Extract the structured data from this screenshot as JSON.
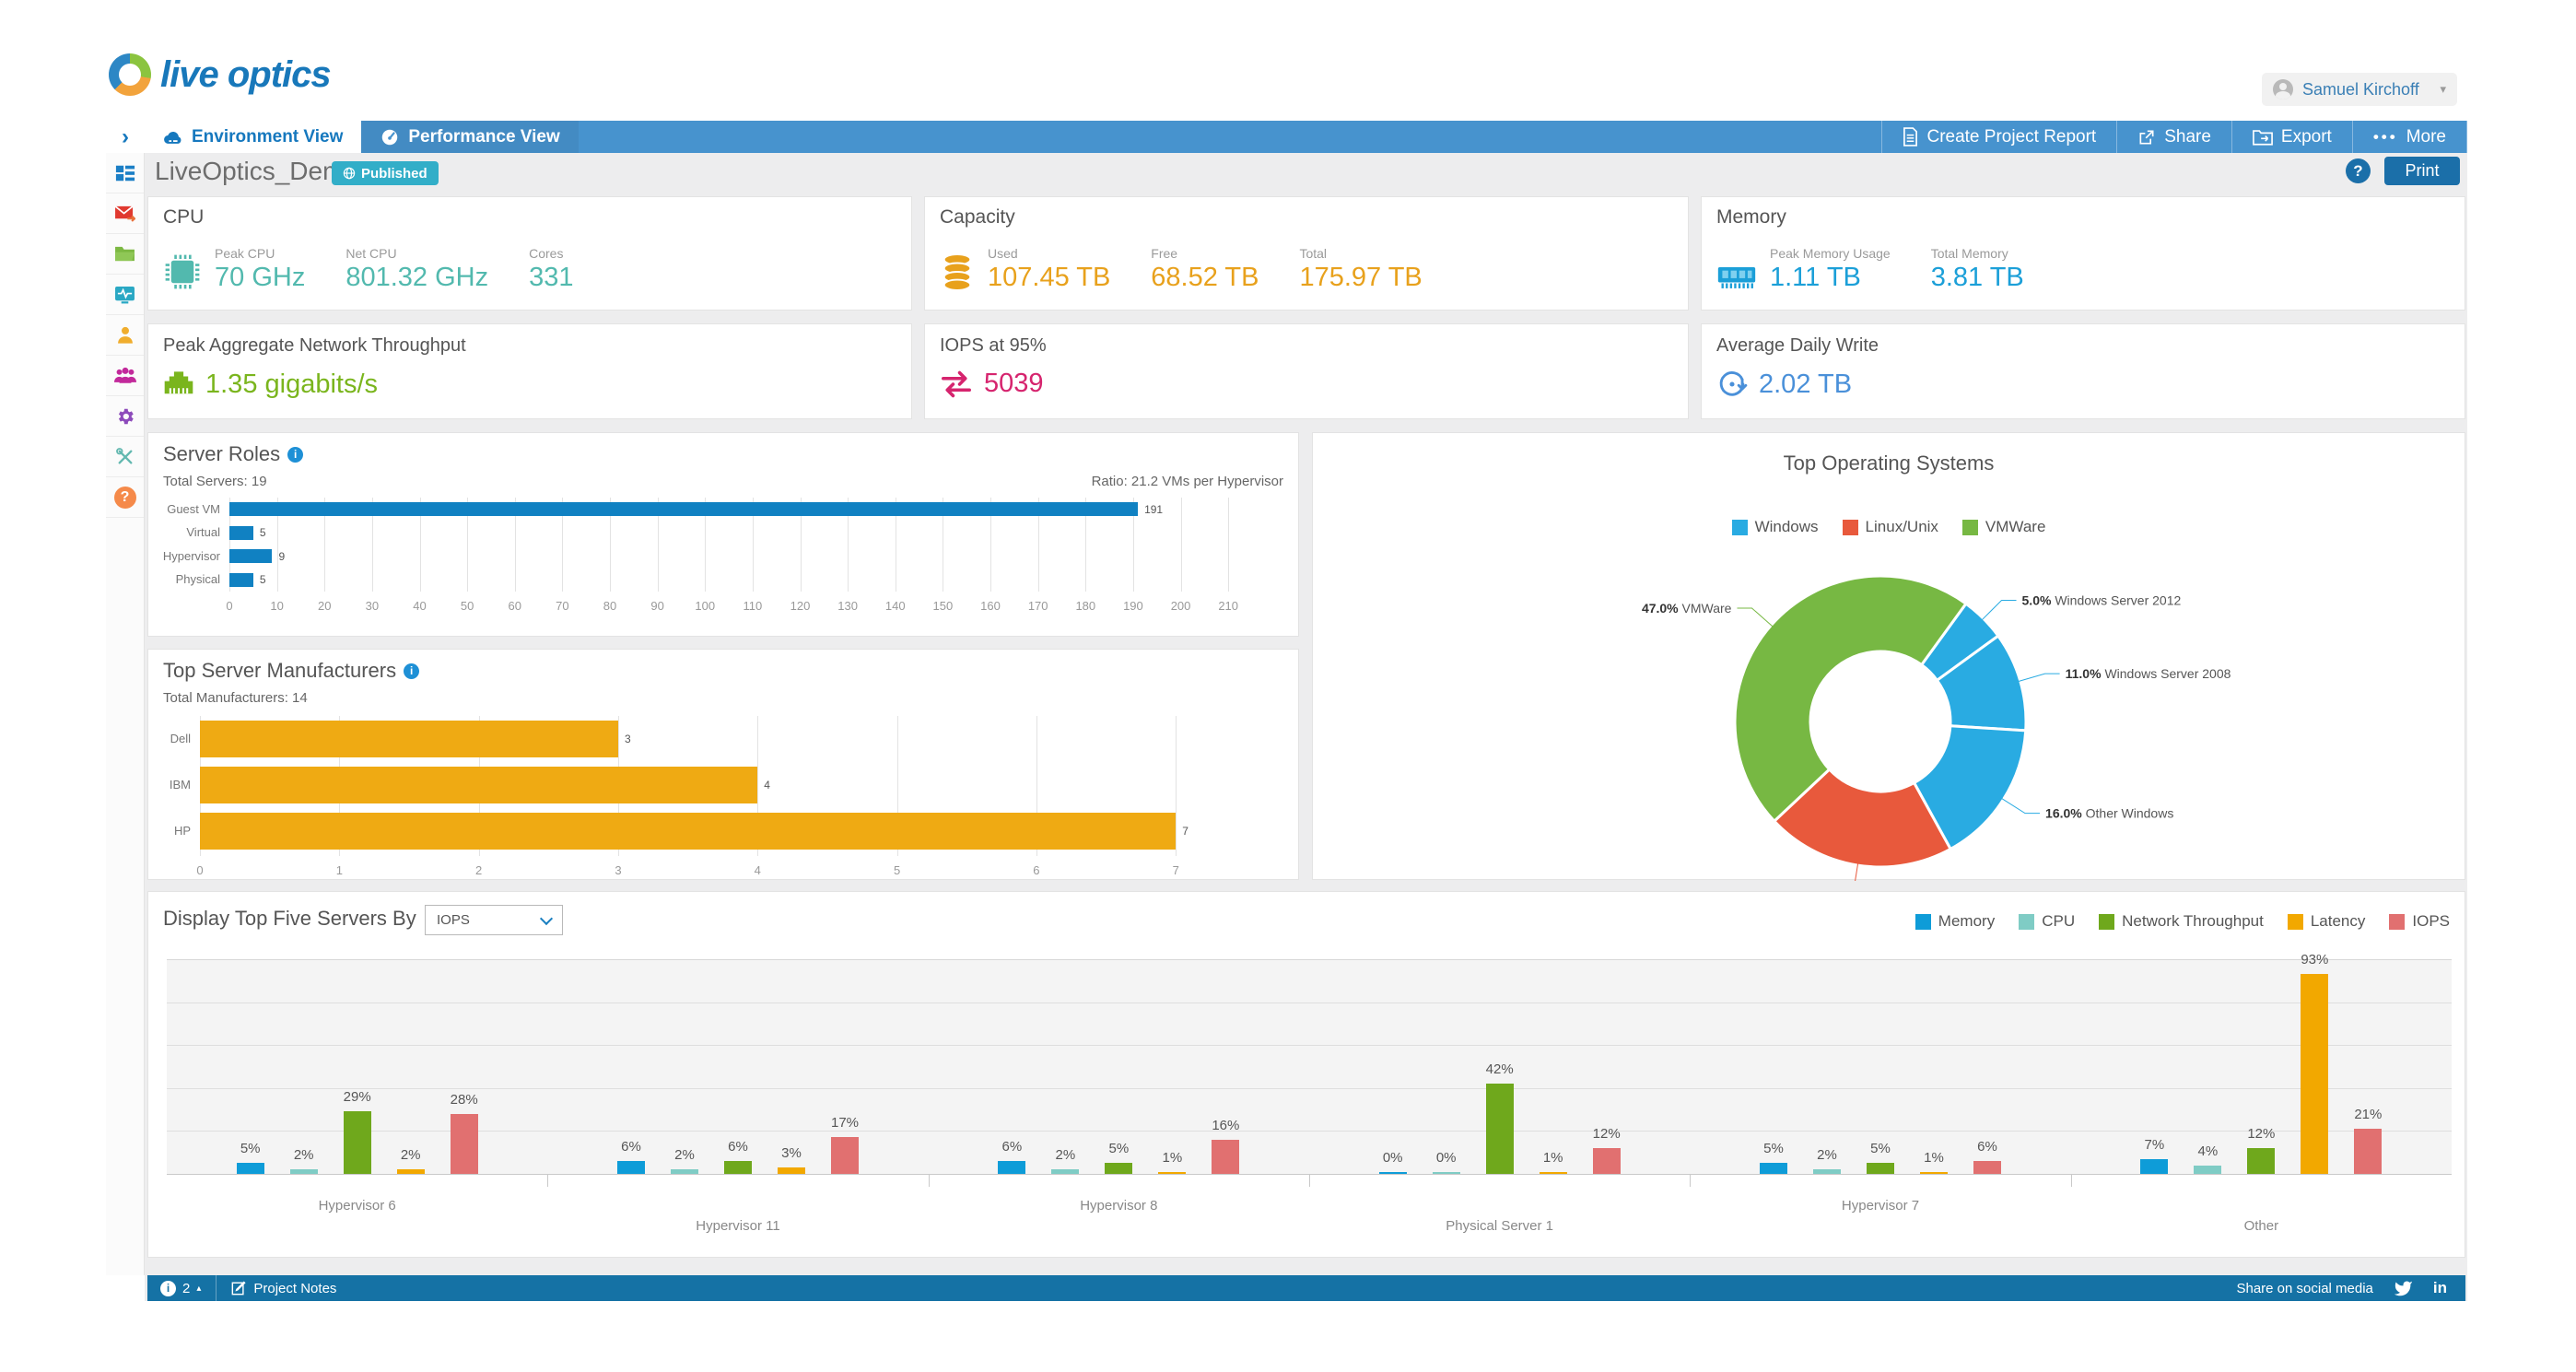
{
  "header": {
    "logo_text": "live optics",
    "user_name": "Samuel Kirchoff"
  },
  "nav": {
    "tabs": [
      {
        "label": "Environment View"
      },
      {
        "label": "Performance View"
      }
    ],
    "actions": [
      {
        "label": "Create Project Report"
      },
      {
        "label": "Share"
      },
      {
        "label": "Export"
      },
      {
        "label": "More"
      }
    ]
  },
  "title_bar": {
    "project_name": "LiveOptics_Demo1",
    "badge": "Published",
    "help": "?",
    "print_label": "Print"
  },
  "stat_cards": {
    "cpu": {
      "title": "CPU",
      "accent": "#52b9ae",
      "stats": [
        {
          "label": "Peak CPU",
          "value": "70 GHz"
        },
        {
          "label": "Net CPU",
          "value": "801.32 GHz"
        },
        {
          "label": "Cores",
          "value": "331"
        }
      ]
    },
    "capacity": {
      "title": "Capacity",
      "accent": "#e8a11c",
      "stats": [
        {
          "label": "Used",
          "value": "107.45 TB"
        },
        {
          "label": "Free",
          "value": "68.52 TB"
        },
        {
          "label": "Total",
          "value": "175.97 TB"
        }
      ]
    },
    "memory": {
      "title": "Memory",
      "accent": "#1b9fd8",
      "stats": [
        {
          "label": "Peak Memory Usage",
          "value": "1.11 TB"
        },
        {
          "label": "Total Memory",
          "value": "3.81 TB"
        }
      ]
    },
    "network": {
      "title": "Peak Aggregate Network Throughput",
      "accent": "#7ab51d",
      "value": "1.35 gigabits/s"
    },
    "iops": {
      "title": "IOPS at 95%",
      "accent": "#d6246e",
      "value": "5039"
    },
    "daily_write": {
      "title": "Average Daily Write",
      "accent": "#4a90d9",
      "value": "2.02 TB"
    }
  },
  "chart_data": [
    {
      "id": "server_roles",
      "type": "bar",
      "orientation": "horizontal",
      "title": "Server Roles",
      "subtitle_left": "Total Servers: 19",
      "subtitle_right": "Ratio: 21.2 VMs per Hypervisor",
      "categories": [
        "Guest VM",
        "Virtual",
        "Hypervisor",
        "Physical"
      ],
      "values": [
        191,
        5,
        9,
        5
      ],
      "bar_color": "#1081c2",
      "xlim": [
        0,
        215
      ],
      "grid": true,
      "ticks": [
        0,
        10,
        20,
        30,
        40,
        50,
        60,
        70,
        80,
        90,
        100,
        110,
        120,
        130,
        140,
        150,
        160,
        170,
        180,
        190,
        200,
        210
      ]
    },
    {
      "id": "top_manufacturers",
      "type": "bar",
      "orientation": "horizontal",
      "title": "Top Server Manufacturers",
      "subtitle_left": "Total Manufacturers: 14",
      "categories": [
        "Dell",
        "IBM",
        "HP"
      ],
      "values": [
        3,
        4,
        7
      ],
      "bar_color": "#efaa13",
      "xlim": [
        0,
        7.6
      ],
      "grid": true,
      "ticks": [
        0,
        1,
        2,
        3,
        4,
        5,
        6,
        7
      ]
    },
    {
      "id": "top_os",
      "type": "pie",
      "title": "Top Operating Systems",
      "legend_position": "top",
      "legend": [
        {
          "label": "Windows",
          "color": "#29abe2"
        },
        {
          "label": "Linux/Unix",
          "color": "#e8593c"
        },
        {
          "label": "VMWare",
          "color": "#77b843"
        }
      ],
      "start_angle": 36,
      "slices": [
        {
          "label": "Windows Server 2012",
          "pct": 5.0,
          "color": "#29abe2"
        },
        {
          "label": "Windows Server 2008",
          "pct": 11.0,
          "color": "#29abe2"
        },
        {
          "label": "Other Windows",
          "pct": 16.0,
          "color": "#29abe2"
        },
        {
          "label": "Linux",
          "pct": 21.0,
          "color": "#e8593c"
        },
        {
          "label": "VMWare",
          "pct": 47.0,
          "color": "#77b843"
        }
      ]
    },
    {
      "id": "top_servers",
      "type": "grouped-bar",
      "control_label": "Display Top Five Servers By",
      "control_value": "IOPS",
      "categories": [
        "Hypervisor 6",
        "Hypervisor 11",
        "Hypervisor 8",
        "Physical Server 1",
        "Hypervisor 7",
        "Other"
      ],
      "series": [
        {
          "name": "Memory",
          "color": "#0e9cd8",
          "values": [
            5,
            6,
            6,
            0,
            5,
            7
          ]
        },
        {
          "name": "CPU",
          "color": "#7fccc5",
          "values": [
            2,
            2,
            2,
            0,
            2,
            4
          ]
        },
        {
          "name": "Network Throughput",
          "color": "#6fa81c",
          "values": [
            29,
            6,
            5,
            42,
            5,
            12
          ]
        },
        {
          "name": "Latency",
          "color": "#f2a800",
          "values": [
            2,
            3,
            1,
            1,
            1,
            93
          ]
        },
        {
          "name": "IOPS",
          "color": "#e17070",
          "values": [
            28,
            17,
            16,
            12,
            6,
            21
          ]
        }
      ],
      "unit": "%",
      "ylim": [
        0,
        100
      ],
      "grid_step": 20
    }
  ],
  "footer": {
    "info_count": "2",
    "notes_label": "Project Notes",
    "share_label": "Share on social media"
  }
}
